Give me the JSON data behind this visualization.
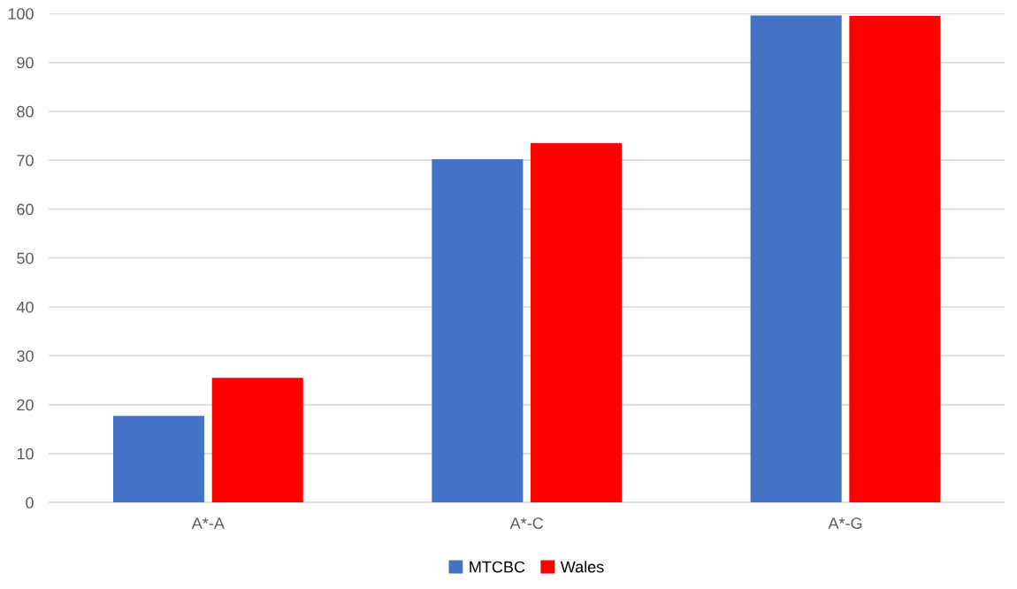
{
  "chart_data": {
    "type": "bar",
    "categories": [
      "A*-A",
      "A*-C",
      "A*-G"
    ],
    "series": [
      {
        "name": "MTCBC",
        "color": "#4472c4",
        "values": [
          17.7,
          70.2,
          99.6
        ]
      },
      {
        "name": "Wales",
        "color": "#ff0000",
        "values": [
          25.5,
          73.5,
          99.5
        ]
      }
    ],
    "ylim": [
      0,
      100
    ],
    "yticks": [
      0,
      10,
      20,
      30,
      40,
      50,
      60,
      70,
      80,
      90,
      100
    ],
    "grid": "y",
    "legend": "bottom"
  }
}
